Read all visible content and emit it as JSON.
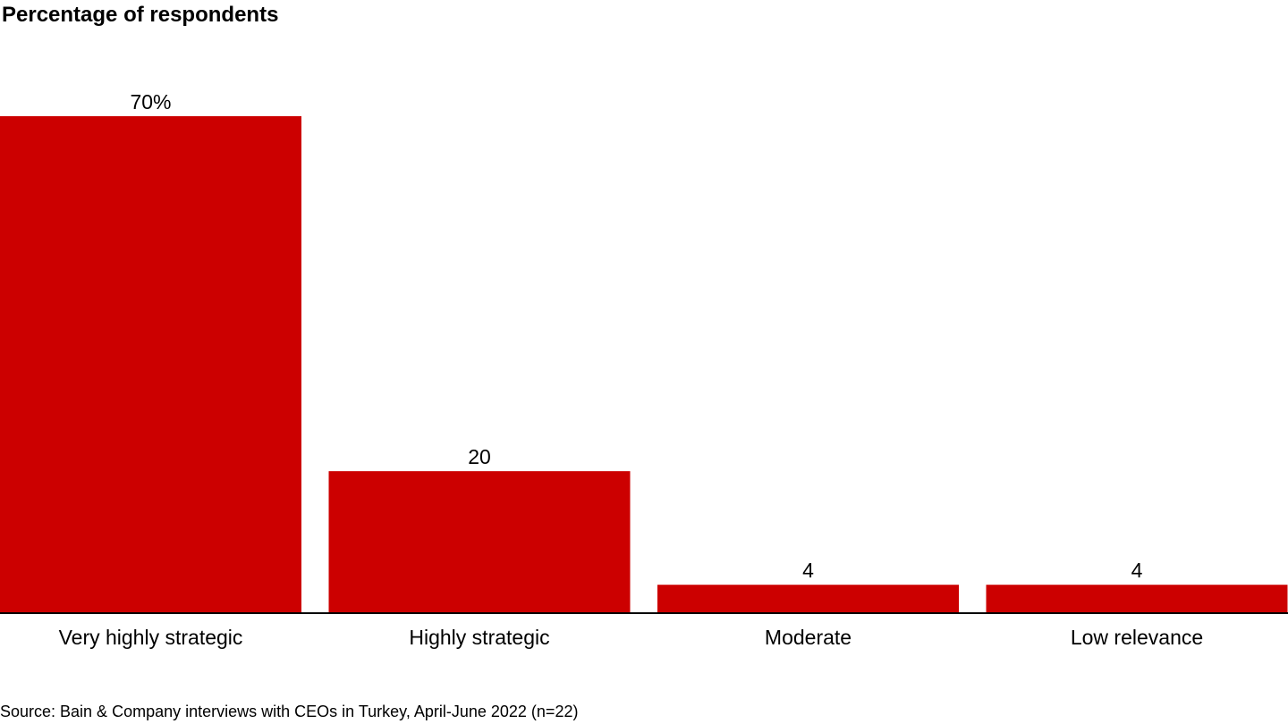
{
  "chart_data": {
    "type": "bar",
    "title": "Percentage of respondents",
    "categories": [
      "Very highly strategic",
      "Highly strategic",
      "Moderate",
      "Low relevance"
    ],
    "values": [
      70,
      20,
      4,
      4
    ],
    "value_labels": [
      "70%",
      "20",
      "4",
      "4"
    ],
    "ylim": [
      0,
      70
    ],
    "grid": false,
    "xlabel": "",
    "ylabel": "",
    "source": "Source: Bain & Company interviews with CEOs in Turkey, April-June 2022 (n=22)",
    "colors": {
      "bar": "#cc0000",
      "axis": "#000000"
    }
  }
}
